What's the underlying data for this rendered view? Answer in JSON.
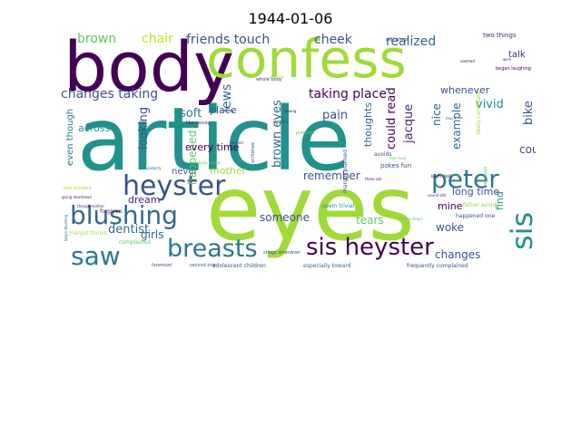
{
  "title": "1944-01-06",
  "words": [
    {
      "text": "article",
      "color": "#21918c"
    },
    {
      "text": "eyes",
      "color": "#a0da39"
    },
    {
      "text": "body",
      "color": "#440154"
    },
    {
      "text": "confess",
      "color": "#a0da39"
    },
    {
      "text": "sis heyster",
      "color": "#440154"
    },
    {
      "text": "heyster",
      "color": "#3b528b"
    },
    {
      "text": "blushing",
      "color": "#31688e"
    },
    {
      "text": "peter",
      "color": "#2a788e"
    },
    {
      "text": "saw",
      "color": "#2a788e"
    },
    {
      "text": "breasts",
      "color": "#2a788e"
    },
    {
      "text": "sis",
      "color": "#21918c"
    },
    {
      "text": "brown",
      "color": "#5ec962"
    },
    {
      "text": "chair",
      "color": "#c8e020"
    },
    {
      "text": "friends touch",
      "color": "#3b528b"
    },
    {
      "text": "cheek",
      "color": "#3b528b"
    },
    {
      "text": "realized",
      "color": "#31688e"
    },
    {
      "text": "jews",
      "color": "#31688e"
    },
    {
      "text": "changes taking",
      "color": "#3b528b"
    },
    {
      "text": "taking place",
      "color": "#440154"
    },
    {
      "text": "talk",
      "color": "#482878"
    },
    {
      "text": "bike",
      "color": "#3b528b"
    },
    {
      "text": "vivid",
      "color": "#21918c"
    },
    {
      "text": "whenever",
      "color": "#3b528b"
    },
    {
      "text": "looking",
      "color": "#3b528b"
    },
    {
      "text": "soft",
      "color": "#2a788e"
    },
    {
      "text": "brown eyes",
      "color": "#31688e"
    },
    {
      "text": "pain",
      "color": "#3b528b"
    },
    {
      "text": "could read",
      "color": "#440154"
    },
    {
      "text": "jacque",
      "color": "#482878"
    },
    {
      "text": "example",
      "color": "#31688e"
    },
    {
      "text": "could",
      "color": "#3b528b"
    },
    {
      "text": "nice",
      "color": "#31688e"
    },
    {
      "text": "thoughts",
      "color": "#31688e"
    },
    {
      "text": "across",
      "color": "#21918c"
    },
    {
      "text": "even though",
      "color": "#2a788e"
    },
    {
      "text": "happened",
      "color": "#5ec962"
    },
    {
      "text": "every time",
      "color": "#440154"
    },
    {
      "text": "mother",
      "color": "#a0da39"
    },
    {
      "text": "never",
      "color": "#3b528b"
    },
    {
      "text": "remember",
      "color": "#3b528b"
    },
    {
      "text": "dream",
      "color": "#482878"
    },
    {
      "text": "someone",
      "color": "#3b528b"
    },
    {
      "text": "tears",
      "color": "#5ec962"
    },
    {
      "text": "mine",
      "color": "#440154"
    },
    {
      "text": "woke",
      "color": "#3b528b"
    },
    {
      "text": "long time",
      "color": "#3b528b"
    },
    {
      "text": "find",
      "color": "#21918c"
    },
    {
      "text": "changes",
      "color": "#3b528b"
    },
    {
      "text": "dentist",
      "color": "#31688e"
    },
    {
      "text": "girls",
      "color": "#31688e"
    },
    {
      "text": "place",
      "color": "#3b528b"
    },
    {
      "text": "two things",
      "color": "#482878"
    },
    {
      "text": "still stings",
      "color": "#482878"
    },
    {
      "text": "whole body",
      "color": "#482878"
    },
    {
      "text": "began laughing",
      "color": "#440154"
    },
    {
      "text": "likely candidate",
      "color": "#a0da39"
    },
    {
      "text": "pokes fun",
      "color": "#3b528b"
    },
    {
      "text": "avoids",
      "color": "#3b528b"
    },
    {
      "text": "father avoids",
      "color": "#a0da39"
    },
    {
      "text": "seem trivial",
      "color": "#21918c"
    },
    {
      "text": "happened one",
      "color": "#3b528b"
    },
    {
      "text": "margot planned",
      "color": "#3b528b"
    },
    {
      "text": "adolescent children",
      "color": "#3b528b"
    },
    {
      "text": "especially toward",
      "color": "#31688e"
    },
    {
      "text": "frequently complained",
      "color": "#3b528b"
    },
    {
      "text": "foremost",
      "color": "#3b528b"
    },
    {
      "text": "second one",
      "color": "#3b528b"
    },
    {
      "text": "one incident",
      "color": "#a0da39"
    },
    {
      "text": "forgiven",
      "color": "#482878"
    },
    {
      "text": "margot thinks",
      "color": "#a0da39"
    },
    {
      "text": "complained",
      "color": "#5ec962"
    },
    {
      "text": "stings whenever",
      "color": "#3b528b"
    },
    {
      "text": "like mossy",
      "color": "#482878"
    },
    {
      "text": "pokes",
      "color": "#3b528b"
    },
    {
      "text": "planned",
      "color": "#5ec962"
    },
    {
      "text": "rushed",
      "color": "#482878"
    },
    {
      "text": "puberty",
      "color": "#31688e"
    },
    {
      "text": "body craves",
      "color": "#5ec962"
    },
    {
      "text": "though mother",
      "color": "#482878"
    },
    {
      "text": "going downtown",
      "color": "#482878"
    },
    {
      "text": "begin blushing",
      "color": "#31688e"
    },
    {
      "text": "blush easily",
      "color": "#440154"
    },
    {
      "text": "withdraw",
      "color": "#31688e"
    },
    {
      "text": "sound still",
      "color": "#482878"
    },
    {
      "text": "oblivious",
      "color": "#5ec962"
    },
    {
      "text": "mother begin",
      "color": "#5ec962"
    },
    {
      "text": "take look",
      "color": "#5ec962"
    },
    {
      "text": "three cat",
      "color": "#440154"
    },
    {
      "text": "since",
      "color": "#a0da39"
    },
    {
      "text": "sometimes",
      "color": "#5ec962"
    },
    {
      "text": "wish",
      "color": "#482878"
    },
    {
      "text": "seemed",
      "color": "#440154"
    },
    {
      "text": "much",
      "color": "#3b528b"
    },
    {
      "text": "young",
      "color": "#440154"
    }
  ]
}
